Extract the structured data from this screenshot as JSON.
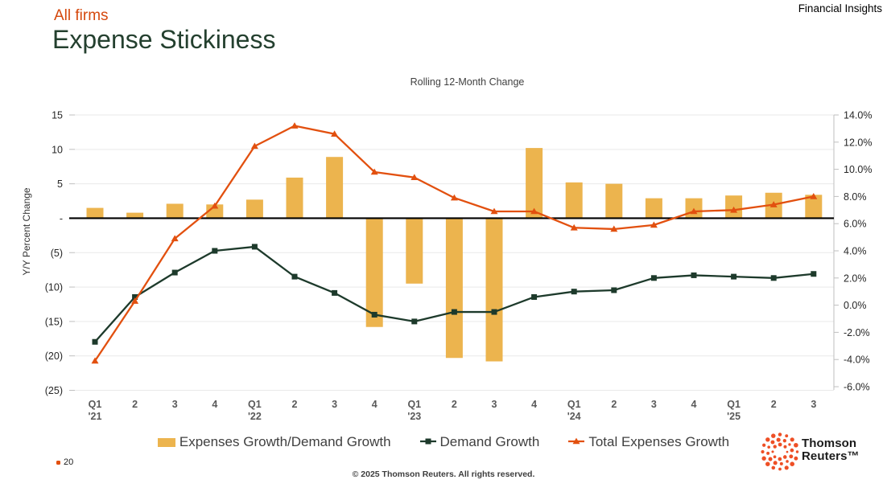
{
  "header": {
    "brand": "Financial Insights",
    "eyebrow": "All firms",
    "title": "Expense Stickiness"
  },
  "chart": {
    "title": "Rolling 12-Month Change",
    "left_axis": {
      "label": "Y/Y Percent Change",
      "tick_labels": [
        "15",
        "10",
        "5",
        "-",
        "(5)",
        "(10)",
        "(15)",
        "(20)",
        "(25)"
      ],
      "tick_values": [
        15,
        10,
        5,
        0,
        -5,
        -10,
        -15,
        -20,
        -25
      ]
    },
    "right_axis": {
      "tick_labels": [
        "14.0%",
        "12.0%",
        "10.0%",
        "8.0%",
        "6.0%",
        "4.0%",
        "2.0%",
        "0.0%",
        "-2.0%",
        "-4.0%",
        "-6.0%"
      ],
      "tick_values": [
        14,
        12,
        10,
        8,
        6,
        4,
        2,
        0,
        -2,
        -4,
        -6
      ]
    }
  },
  "chart_data": {
    "type": "bar",
    "subtype": "combo-bar-and-lines",
    "title": "Rolling 12-Month Change",
    "categories": [
      "Q1 '21",
      "2",
      "3",
      "4",
      "Q1 '22",
      "2",
      "3",
      "4",
      "Q1 '23",
      "2",
      "3",
      "4",
      "Q1 '24",
      "2",
      "3",
      "4",
      "Q1 '25",
      "2",
      "3"
    ],
    "series": [
      {
        "name": "Expenses Growth/Demand Growth",
        "type": "bar",
        "axis": "left",
        "color": "#ECB44E",
        "values": [
          1.5,
          0.8,
          2.1,
          2.0,
          2.7,
          5.9,
          8.9,
          -15.8,
          -9.5,
          -20.3,
          -20.8,
          10.2,
          5.2,
          5.0,
          2.9,
          2.9,
          3.3,
          3.7,
          3.4
        ]
      },
      {
        "name": "Demand Growth",
        "type": "line",
        "axis": "right",
        "marker": "square",
        "color": "#1D3A2B",
        "values": [
          -2.7,
          0.6,
          2.4,
          4.0,
          4.3,
          2.1,
          0.9,
          -0.7,
          -1.2,
          -0.5,
          -0.5,
          0.6,
          1.0,
          1.1,
          2.0,
          2.2,
          2.1,
          2.0,
          2.3
        ]
      },
      {
        "name": "Total Expenses Growth",
        "type": "line",
        "axis": "right",
        "marker": "triangle",
        "color": "#E2500F",
        "values": [
          -4.1,
          0.3,
          4.9,
          7.3,
          11.7,
          13.2,
          12.6,
          9.8,
          9.4,
          7.9,
          6.9,
          6.9,
          5.7,
          5.6,
          5.9,
          6.9,
          7.0,
          7.4,
          8.0
        ]
      }
    ],
    "left_ylabel": "Y/Y Percent Change",
    "left_ylim": [
      -25,
      15
    ],
    "right_ylim_percent": [
      -6,
      14
    ],
    "grid": true,
    "legend_position": "bottom",
    "colors": {
      "grid": "#E9E9E9",
      "zero_line": "#000000",
      "axis": "#BFBFBF",
      "tick_text": "#262626",
      "x_tick_text": "#595959"
    }
  },
  "footer": {
    "copyright": "© 2025 Thomson Reuters. All rights reserved.",
    "page_number": "20",
    "page_bullet_color": "#E2500F"
  },
  "logo": {
    "line1": "Thomson",
    "line2": "Reuters™",
    "dot_color": "#EE4F25"
  }
}
